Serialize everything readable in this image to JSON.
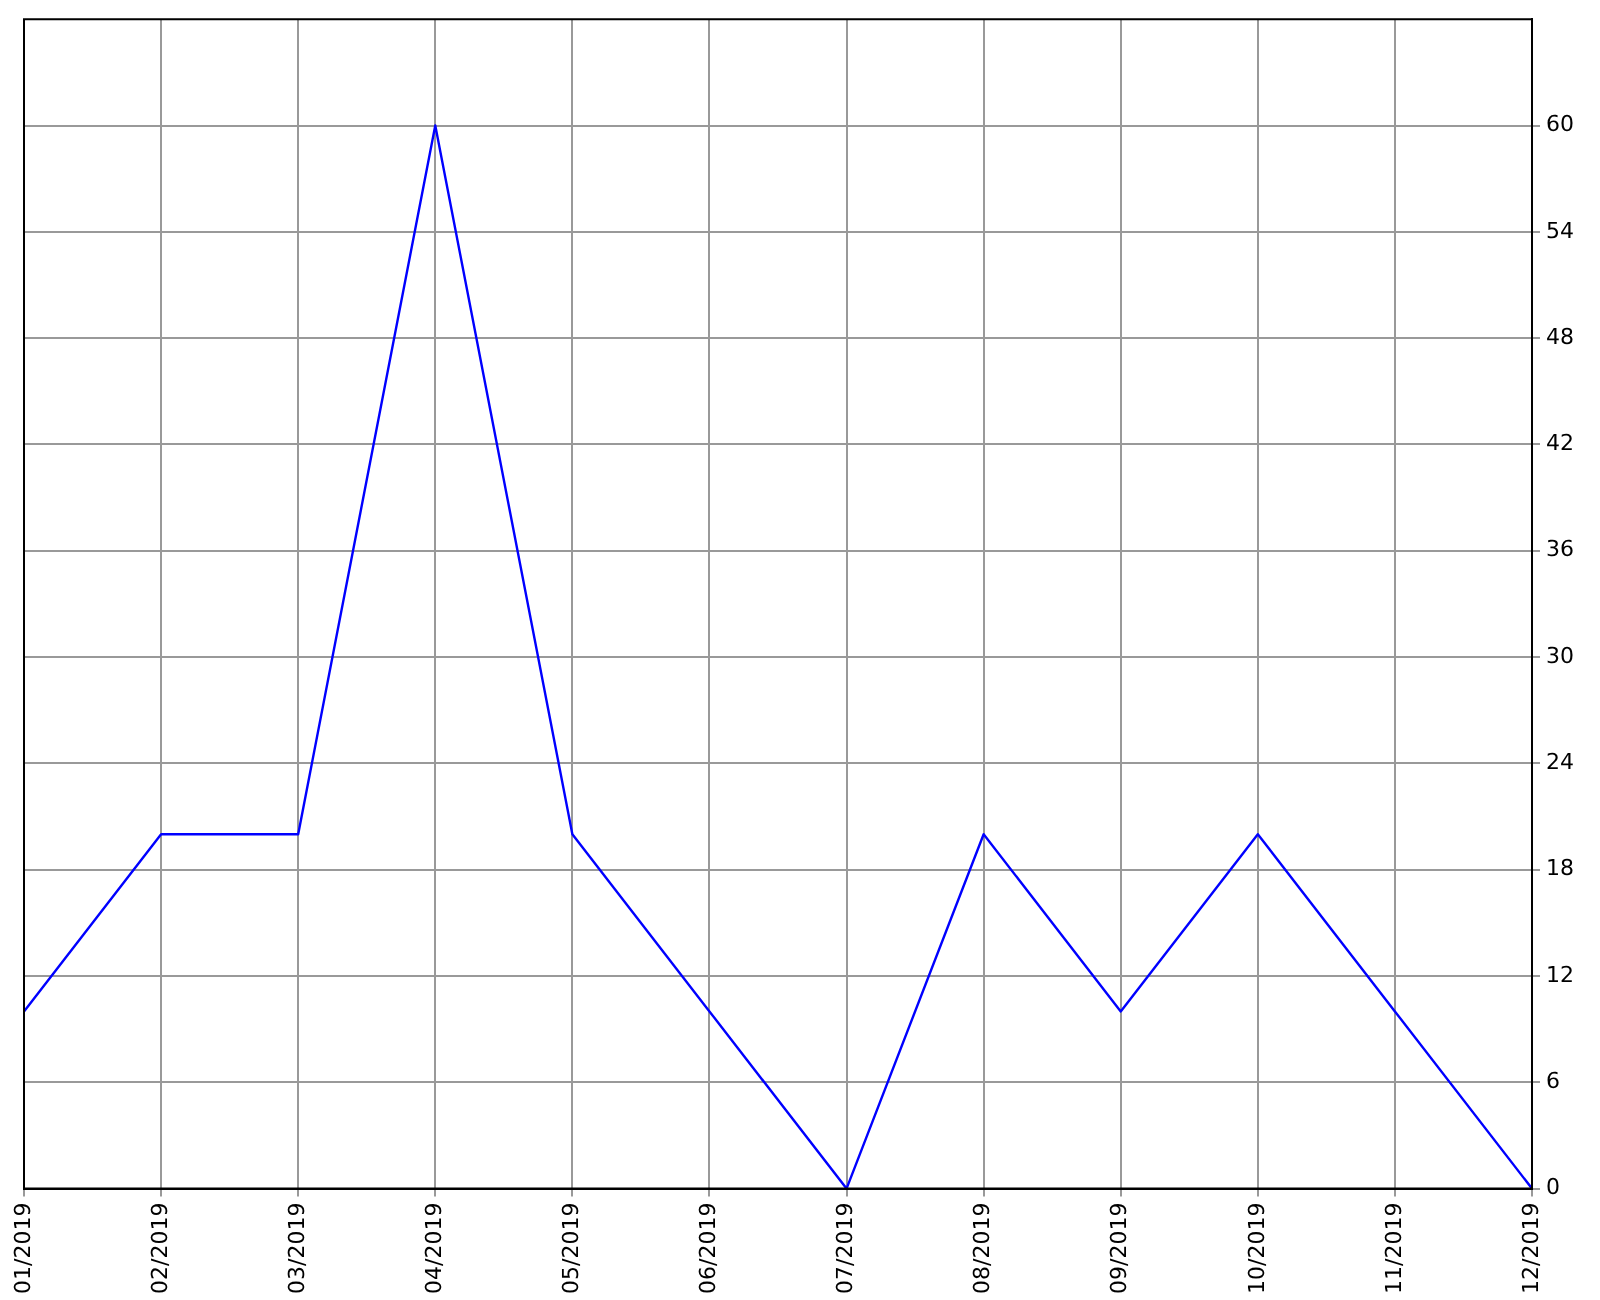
{
  "chart_data": {
    "type": "line",
    "categories": [
      "01/2019",
      "02/2019",
      "03/2019",
      "04/2019",
      "05/2019",
      "06/2019",
      "07/2019",
      "08/2019",
      "09/2019",
      "10/2019",
      "11/2019",
      "12/2019"
    ],
    "series": [
      {
        "color": "#0000ff",
        "values": [
          10,
          20,
          20,
          60,
          20,
          10,
          0,
          20,
          10,
          20,
          10,
          0
        ]
      }
    ],
    "ylim": [
      0,
      66
    ],
    "yticks": [
      0,
      6,
      12,
      18,
      24,
      30,
      36,
      42,
      48,
      54,
      60
    ],
    "grid": true,
    "legend": false,
    "marker": "none",
    "line_style": "solid"
  }
}
